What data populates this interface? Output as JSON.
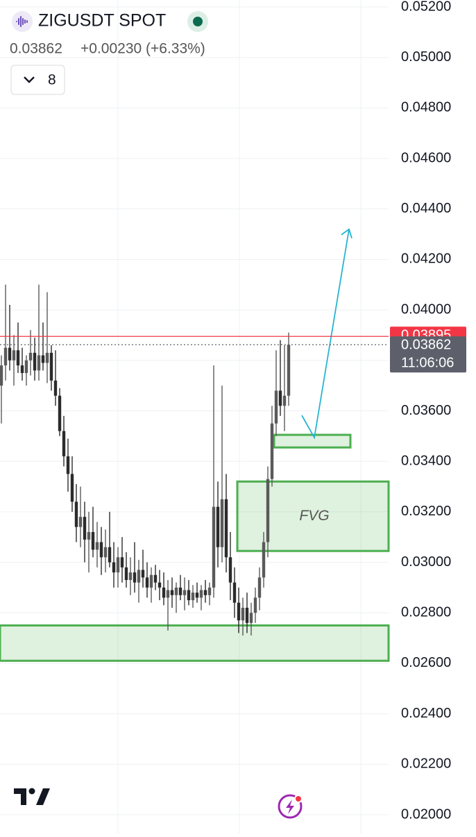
{
  "chart_data": {
    "type": "candlestick",
    "title": "ZIGUSDT SPOT",
    "price": "0.03862",
    "change": "+0.00230 (+6.33%)",
    "interval": "8",
    "annotation": "FVG",
    "up_color": "#5a5a5a",
    "down_color": "#2b2b2b",
    "grid": true,
    "ylim": [
      0.02,
      0.052
    ],
    "yticks": [
      {
        "value": 0.052,
        "label": "0.05200"
      },
      {
        "value": 0.05,
        "label": "0.05000"
      },
      {
        "value": 0.048,
        "label": "0.04800"
      },
      {
        "value": 0.046,
        "label": "0.04600"
      },
      {
        "value": 0.044,
        "label": "0.04400"
      },
      {
        "value": 0.042,
        "label": "0.04200"
      },
      {
        "value": 0.04,
        "label": "0.04000"
      },
      {
        "value": 0.038,
        "label": "0.03800"
      },
      {
        "value": 0.036,
        "label": "0.03600"
      },
      {
        "value": 0.034,
        "label": "0.03400"
      },
      {
        "value": 0.032,
        "label": "0.03200"
      },
      {
        "value": 0.03,
        "label": "0.03000"
      },
      {
        "value": 0.028,
        "label": "0.02800"
      },
      {
        "value": 0.026,
        "label": "0.02600"
      },
      {
        "value": 0.024,
        "label": "0.02400"
      },
      {
        "value": 0.022,
        "label": "0.02200"
      },
      {
        "value": 0.02,
        "label": "0.02000"
      }
    ],
    "price_tags": [
      {
        "value": 0.03895,
        "color": "#f23645"
      },
      {
        "value": 0.03862,
        "countdown": "11:06:06",
        "color": "#5d606b"
      }
    ],
    "zones": [
      {
        "low": 0.0261,
        "high": 0.0275
      },
      {
        "low": 0.03045,
        "high": 0.0332
      },
      {
        "low": 0.03455,
        "high": 0.03505
      }
    ],
    "ohlc": [
      [
        0.037,
        0.0382,
        0.0355,
        0.0378
      ],
      [
        0.0378,
        0.041,
        0.0372,
        0.0385
      ],
      [
        0.0385,
        0.0402,
        0.0376,
        0.038
      ],
      [
        0.038,
        0.039,
        0.037,
        0.0384
      ],
      [
        0.0384,
        0.0395,
        0.0375,
        0.0378
      ],
      [
        0.0378,
        0.0385,
        0.0372,
        0.0375
      ],
      [
        0.0375,
        0.0382,
        0.037,
        0.038
      ],
      [
        0.038,
        0.0392,
        0.0374,
        0.0383
      ],
      [
        0.0383,
        0.0389,
        0.0372,
        0.0376
      ],
      [
        0.0376,
        0.041,
        0.0372,
        0.0382
      ],
      [
        0.0382,
        0.0395,
        0.0376,
        0.0379
      ],
      [
        0.0379,
        0.0407,
        0.0371,
        0.0383
      ],
      [
        0.0383,
        0.0386,
        0.0368,
        0.0372
      ],
      [
        0.0372,
        0.0384,
        0.0362,
        0.0366
      ],
      [
        0.0366,
        0.0369,
        0.035,
        0.0352
      ],
      [
        0.0352,
        0.0358,
        0.0338,
        0.0342
      ],
      [
        0.0342,
        0.0349,
        0.0328,
        0.0335
      ],
      [
        0.0335,
        0.0342,
        0.032,
        0.0324
      ],
      [
        0.0324,
        0.0331,
        0.0308,
        0.0314
      ],
      [
        0.0314,
        0.033,
        0.0306,
        0.0318
      ],
      [
        0.0318,
        0.0324,
        0.03,
        0.0309
      ],
      [
        0.0309,
        0.032,
        0.0296,
        0.0312
      ],
      [
        0.0312,
        0.0322,
        0.0302,
        0.0305
      ],
      [
        0.0305,
        0.0316,
        0.0298,
        0.0308
      ],
      [
        0.0308,
        0.0314,
        0.0295,
        0.0302
      ],
      [
        0.0302,
        0.0313,
        0.0296,
        0.0306
      ],
      [
        0.0306,
        0.032,
        0.0298,
        0.03
      ],
      [
        0.03,
        0.0308,
        0.029,
        0.0296
      ],
      [
        0.0296,
        0.0306,
        0.029,
        0.0302
      ],
      [
        0.0302,
        0.031,
        0.0292,
        0.0298
      ],
      [
        0.0298,
        0.0304,
        0.029,
        0.0293
      ],
      [
        0.0293,
        0.0302,
        0.0287,
        0.0296
      ],
      [
        0.0296,
        0.0308,
        0.0288,
        0.0292
      ],
      [
        0.0292,
        0.0301,
        0.0284,
        0.0297
      ],
      [
        0.0297,
        0.0305,
        0.029,
        0.0294
      ],
      [
        0.0294,
        0.03,
        0.0286,
        0.029
      ],
      [
        0.029,
        0.0298,
        0.0284,
        0.0295
      ],
      [
        0.0295,
        0.0299,
        0.0289,
        0.0292
      ],
      [
        0.0292,
        0.0297,
        0.0285,
        0.029
      ],
      [
        0.029,
        0.0296,
        0.0283,
        0.0286
      ],
      [
        0.0286,
        0.0293,
        0.0273,
        0.0289
      ],
      [
        0.0289,
        0.0294,
        0.0282,
        0.0287
      ],
      [
        0.0287,
        0.0292,
        0.028,
        0.029
      ],
      [
        0.029,
        0.0295,
        0.0285,
        0.0287
      ],
      [
        0.0287,
        0.0294,
        0.0281,
        0.0289
      ],
      [
        0.0289,
        0.0293,
        0.0283,
        0.0285
      ],
      [
        0.0285,
        0.0291,
        0.0282,
        0.0288
      ],
      [
        0.0288,
        0.0292,
        0.0284,
        0.0286
      ],
      [
        0.0286,
        0.0291,
        0.0281,
        0.0289
      ],
      [
        0.0289,
        0.0293,
        0.0284,
        0.0287
      ],
      [
        0.0287,
        0.0292,
        0.0283,
        0.029
      ],
      [
        0.029,
        0.0378,
        0.0286,
        0.0322
      ],
      [
        0.0322,
        0.0332,
        0.0298,
        0.0306
      ],
      [
        0.0306,
        0.037,
        0.03,
        0.0325
      ],
      [
        0.0325,
        0.0335,
        0.0296,
        0.0302
      ],
      [
        0.0302,
        0.0312,
        0.0285,
        0.0292
      ],
      [
        0.0292,
        0.0298,
        0.0278,
        0.0284
      ],
      [
        0.0284,
        0.029,
        0.0272,
        0.0277
      ],
      [
        0.0277,
        0.0286,
        0.0271,
        0.0282
      ],
      [
        0.0282,
        0.0288,
        0.0272,
        0.0276
      ],
      [
        0.0276,
        0.0284,
        0.0271,
        0.028
      ],
      [
        0.028,
        0.029,
        0.0276,
        0.0286
      ],
      [
        0.0286,
        0.0298,
        0.0281,
        0.0294
      ],
      [
        0.0294,
        0.0312,
        0.029,
        0.0308
      ],
      [
        0.0308,
        0.0338,
        0.0302,
        0.0333
      ],
      [
        0.0333,
        0.0362,
        0.033,
        0.0355
      ],
      [
        0.0355,
        0.0384,
        0.035,
        0.0368
      ],
      [
        0.0368,
        0.0388,
        0.0358,
        0.0362
      ],
      [
        0.0362,
        0.0386,
        0.0352,
        0.0366
      ],
      [
        0.0366,
        0.0391,
        0.0362,
        0.03862
      ]
    ]
  }
}
